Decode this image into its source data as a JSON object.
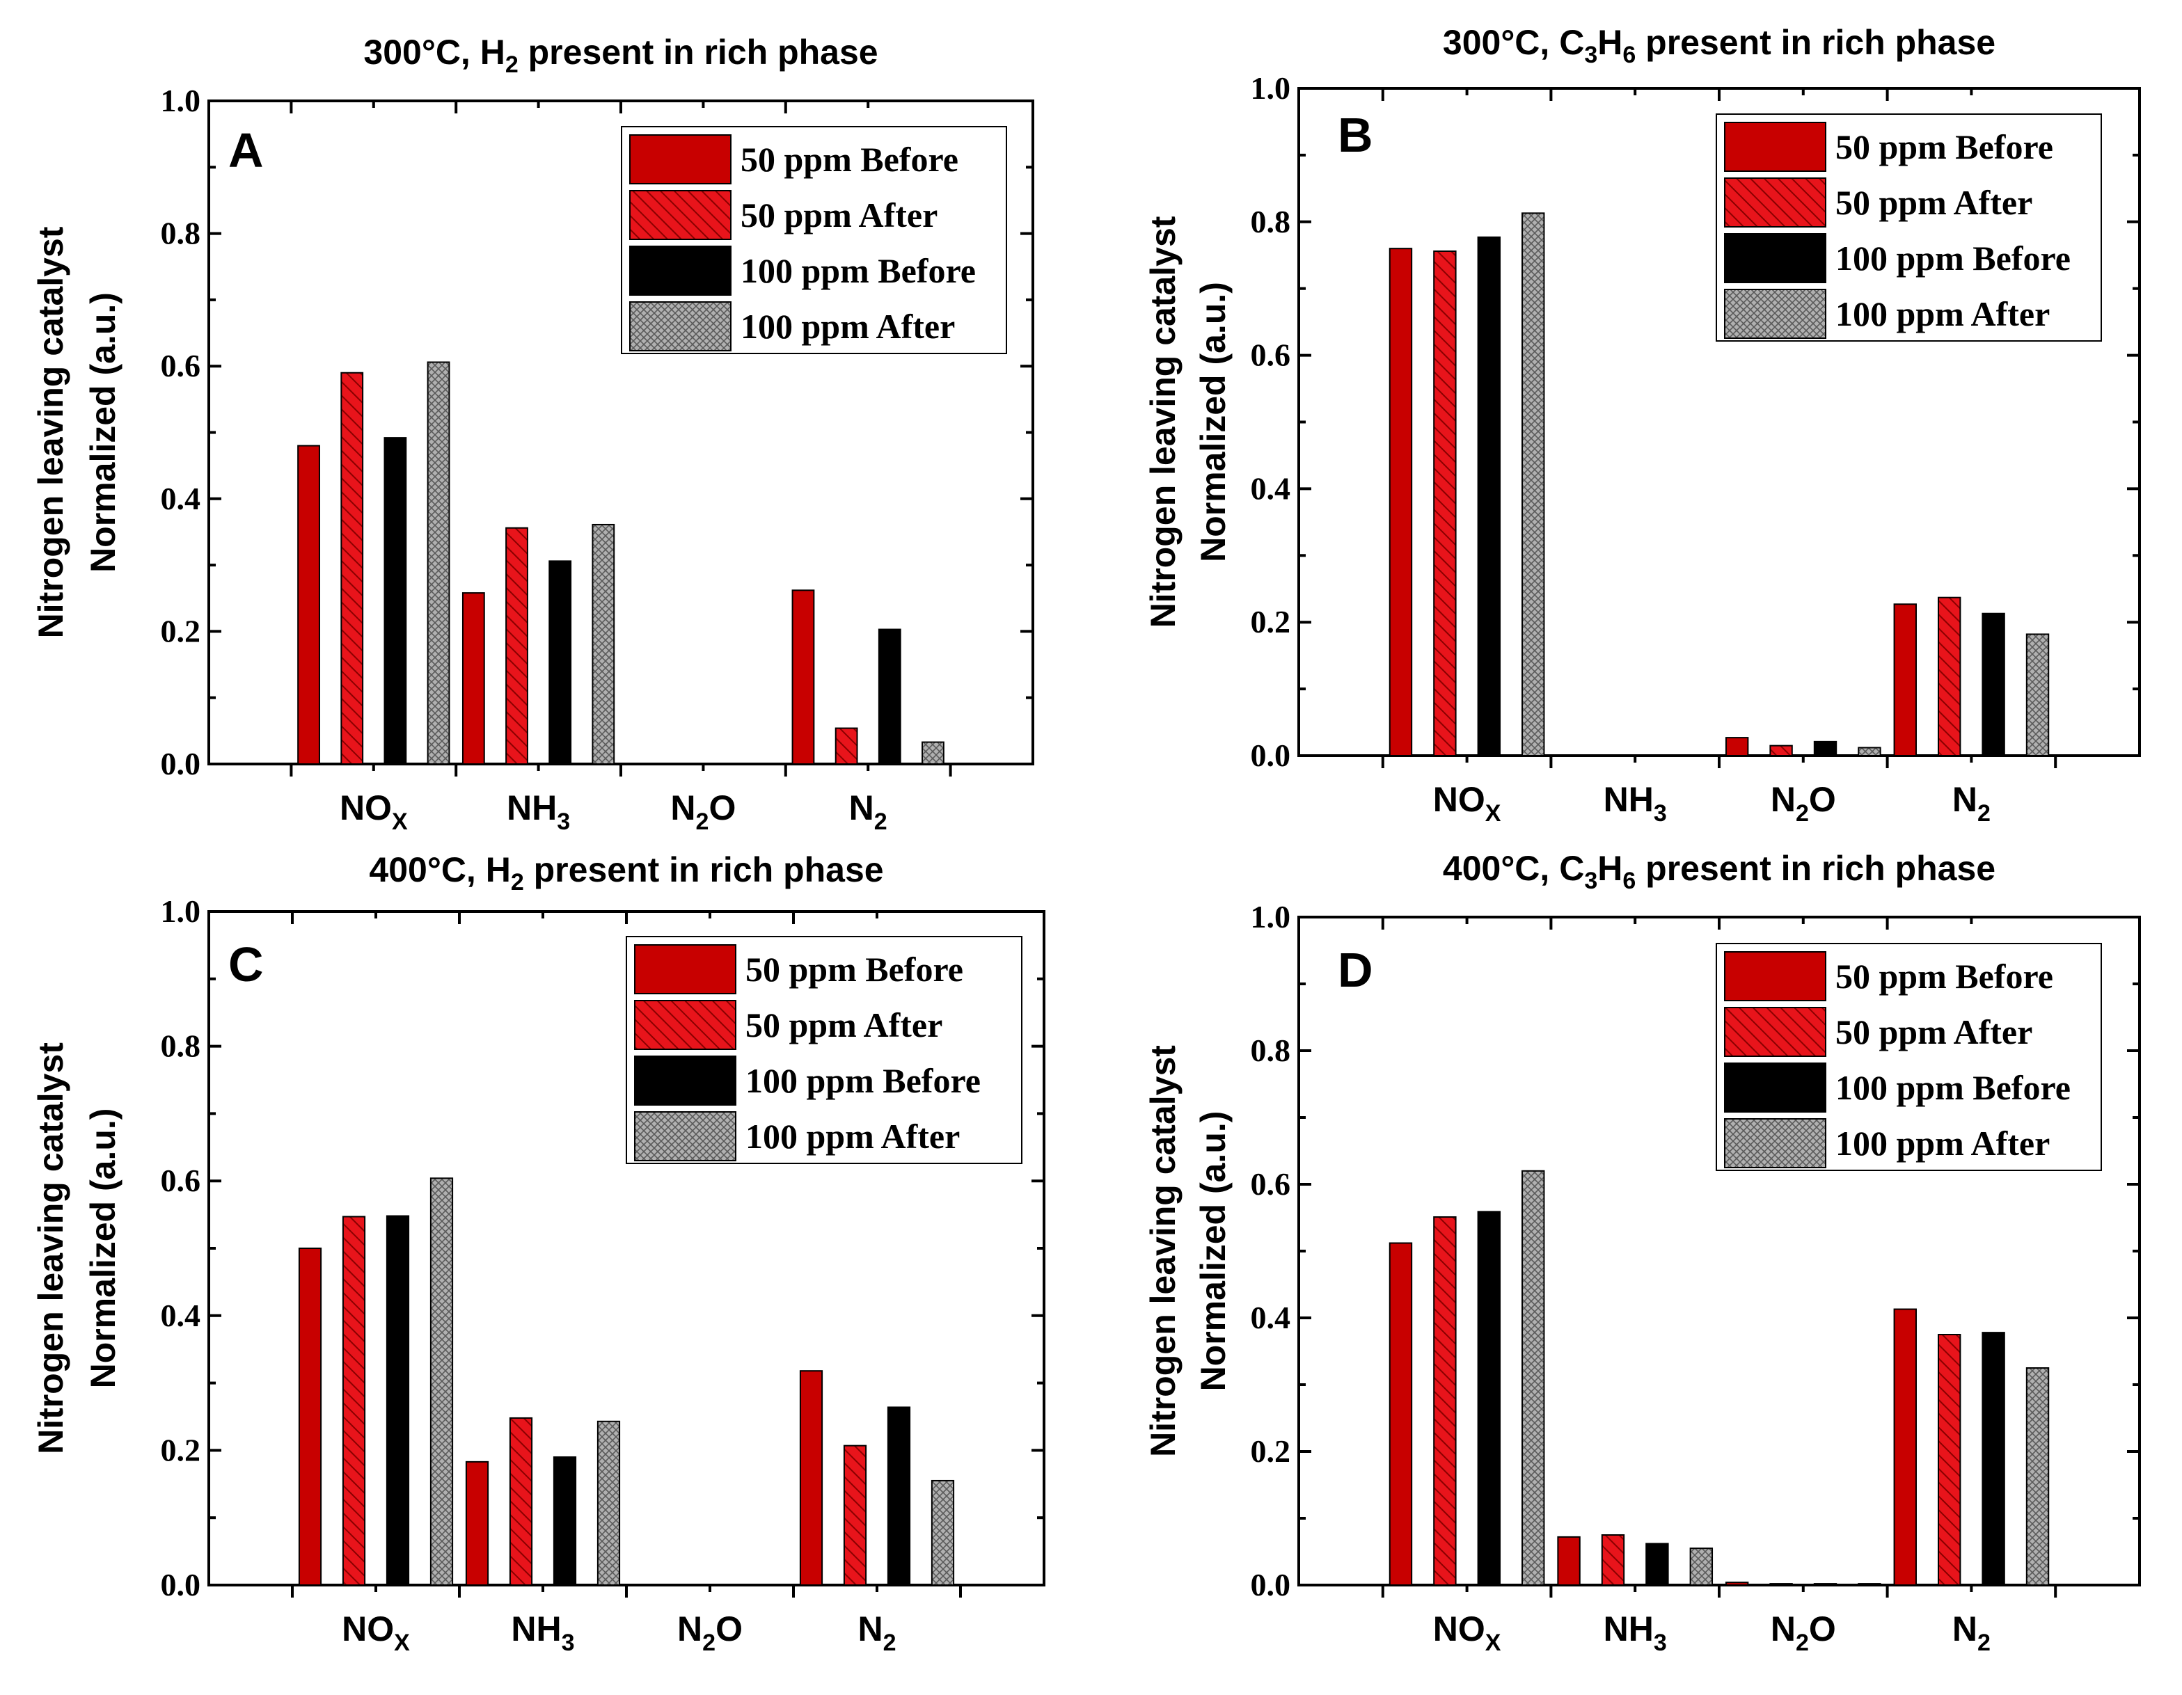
{
  "colors": {
    "before_50": "#c80000",
    "after_50": "#e8141b",
    "before_100": "#000000",
    "after_100": "#a0a0a0",
    "axis": "#000000"
  },
  "legend": [
    {
      "label": "50 ppm Before",
      "style": "solid-red"
    },
    {
      "label": "50 ppm After",
      "style": "hatch-red"
    },
    {
      "label": "100 ppm Before",
      "style": "solid-black"
    },
    {
      "label": "100 ppm After",
      "style": "crosshatch-grey"
    }
  ],
  "chart_data": [
    {
      "panel": "A",
      "type": "bar",
      "title": "300°C, H2 present in rich phase",
      "title_parts": [
        {
          "t": "300°C, H"
        },
        {
          "t": "2",
          "sub": true
        },
        {
          "t": " present in rich phase"
        }
      ],
      "ylabel_line1": "Nitrogen leaving catalyst",
      "ylabel_line2": "Normalized (a.u.)",
      "ylim": [
        0,
        1.0
      ],
      "yticks": [
        "0.0",
        "0.2",
        "0.4",
        "0.6",
        "0.8",
        "1.0"
      ],
      "categories": [
        "NOX",
        "NH3",
        "N2O",
        "N2"
      ],
      "series": [
        {
          "name": "50 ppm Before",
          "values": [
            0.48,
            0.258,
            0,
            0.262
          ]
        },
        {
          "name": "50 ppm After",
          "values": [
            0.59,
            0.356,
            0,
            0.054
          ]
        },
        {
          "name": "100 ppm Before",
          "values": [
            0.492,
            0.306,
            0,
            0.203
          ]
        },
        {
          "name": "100 ppm After",
          "values": [
            0.606,
            0.361,
            0,
            0.033
          ]
        }
      ]
    },
    {
      "panel": "B",
      "type": "bar",
      "title": "300°C, C3H6 present in rich phase",
      "title_parts": [
        {
          "t": "300°C, C"
        },
        {
          "t": "3",
          "sub": true
        },
        {
          "t": "H"
        },
        {
          "t": "6",
          "sub": true
        },
        {
          "t": " present in rich phase"
        }
      ],
      "ylabel_line1": "Nitrogen leaving catalyst",
      "ylabel_line2": "Normalized (a.u.)",
      "ylim": [
        0,
        1.0
      ],
      "yticks": [
        "0.0",
        "0.2",
        "0.4",
        "0.6",
        "0.8",
        "1.0"
      ],
      "categories": [
        "NOX",
        "NH3",
        "N2O",
        "N2"
      ],
      "series": [
        {
          "name": "50 ppm Before",
          "values": [
            0.76,
            0,
            0.027,
            0.227
          ]
        },
        {
          "name": "50 ppm After",
          "values": [
            0.756,
            0,
            0.015,
            0.237
          ]
        },
        {
          "name": "100 ppm Before",
          "values": [
            0.777,
            0,
            0.021,
            0.213
          ]
        },
        {
          "name": "100 ppm After",
          "values": [
            0.813,
            0,
            0.012,
            0.182
          ]
        }
      ]
    },
    {
      "panel": "C",
      "type": "bar",
      "title": "400°C, H2 present in rich phase",
      "title_parts": [
        {
          "t": "400°C, H"
        },
        {
          "t": "2",
          "sub": true
        },
        {
          "t": " present in rich phase"
        }
      ],
      "ylabel_line1": "Nitrogen leaving catalyst",
      "ylabel_line2": "Normalized (a.u.)",
      "ylim": [
        0,
        1.0
      ],
      "yticks": [
        "0.0",
        "0.2",
        "0.4",
        "0.6",
        "0.8",
        "1.0"
      ],
      "categories": [
        "NOX",
        "NH3",
        "N2O",
        "N2"
      ],
      "series": [
        {
          "name": "50 ppm Before",
          "values": [
            0.5,
            0.183,
            0,
            0.318
          ]
        },
        {
          "name": "50 ppm After",
          "values": [
            0.547,
            0.248,
            0,
            0.207
          ]
        },
        {
          "name": "100 ppm Before",
          "values": [
            0.548,
            0.19,
            0,
            0.264
          ]
        },
        {
          "name": "100 ppm After",
          "values": [
            0.604,
            0.243,
            0,
            0.155
          ]
        }
      ]
    },
    {
      "panel": "D",
      "type": "bar",
      "title": "400°C, C3H6 present in rich phase",
      "title_parts": [
        {
          "t": "400°C, C"
        },
        {
          "t": "3",
          "sub": true
        },
        {
          "t": "H"
        },
        {
          "t": "6",
          "sub": true
        },
        {
          "t": " present in rich phase"
        }
      ],
      "ylabel_line1": "Nitrogen leaving catalyst",
      "ylabel_line2": "Normalized (a.u.)",
      "ylim": [
        0,
        1.0
      ],
      "yticks": [
        "0.0",
        "0.2",
        "0.4",
        "0.6",
        "0.8",
        "1.0"
      ],
      "categories": [
        "NOX",
        "NH3",
        "N2O",
        "N2"
      ],
      "series": [
        {
          "name": "50 ppm Before",
          "values": [
            0.512,
            0.072,
            0.004,
            0.413
          ]
        },
        {
          "name": "50 ppm After",
          "values": [
            0.551,
            0.075,
            0.002,
            0.375
          ]
        },
        {
          "name": "100 ppm Before",
          "values": [
            0.559,
            0.062,
            0.002,
            0.378
          ]
        },
        {
          "name": "100 ppm After",
          "values": [
            0.62,
            0.055,
            0.002,
            0.325
          ]
        }
      ]
    }
  ]
}
